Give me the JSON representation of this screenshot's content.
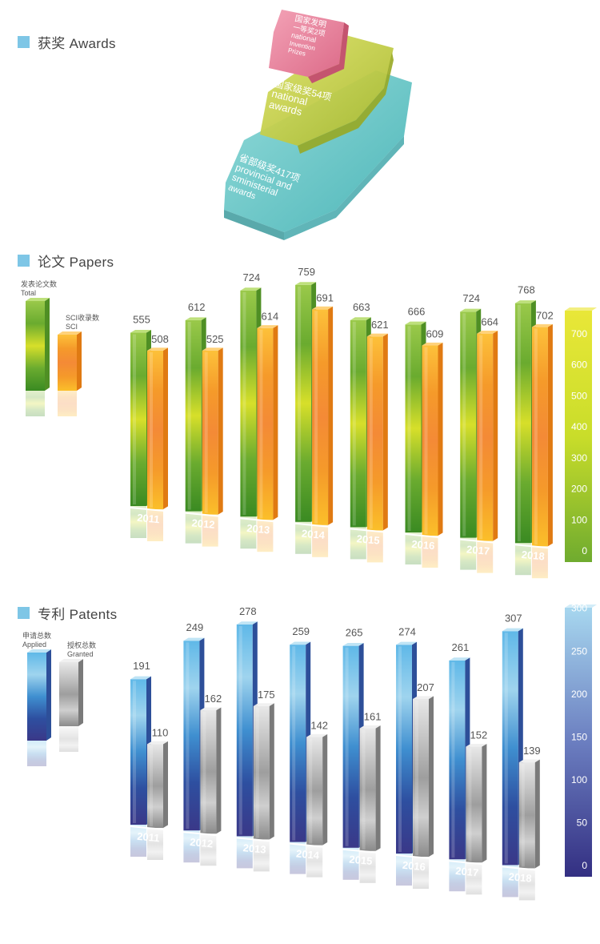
{
  "sections": {
    "awards": "获奖  Awards",
    "papers": "论文  Papers",
    "patents": "专利  Patents"
  },
  "awards": {
    "tiers": [
      {
        "lines": [
          "国家发明",
          "一等奖2项",
          "national",
          "Invention",
          "Prizes"
        ],
        "color": "#e87b95"
      },
      {
        "lines": [
          "国家级奖54项",
          "national",
          "awards"
        ],
        "color": "#c5cf3a"
      },
      {
        "lines": [
          "省部级奖417项",
          "provincial and",
          "sministerial",
          "awards"
        ],
        "color": "#5fc4c4"
      }
    ]
  },
  "chart_data": [
    {
      "type": "bar",
      "categories": [
        "2011",
        "2012",
        "2013",
        "2014",
        "2015",
        "2016",
        "2017",
        "2018"
      ],
      "series": [
        {
          "name": "发表论文数 Total",
          "values": [
            555,
            612,
            724,
            759,
            663,
            666,
            724,
            768
          ]
        },
        {
          "name": "SCI收录数 SCI",
          "values": [
            508,
            525,
            614,
            691,
            621,
            609,
            664,
            702
          ]
        }
      ],
      "legend": [
        {
          "cn": "发表论文数",
          "en": "Total"
        },
        {
          "cn": "SCI收录数",
          "en": "SCI"
        }
      ],
      "yticks": [
        "0",
        "100",
        "200",
        "300",
        "400",
        "500",
        "600",
        "700"
      ],
      "ylim": [
        0,
        800
      ],
      "colors": [
        "#7cb83a",
        "#f59a2a"
      ]
    },
    {
      "type": "bar",
      "categories": [
        "2011",
        "2012",
        "2013",
        "2014",
        "2015",
        "2016",
        "2017",
        "2018"
      ],
      "series": [
        {
          "name": "申请总数 Applied",
          "values": [
            191,
            249,
            278,
            259,
            265,
            274,
            261,
            307
          ]
        },
        {
          "name": "授权总数 Granted",
          "values": [
            110,
            162,
            175,
            142,
            161,
            207,
            152,
            139
          ]
        }
      ],
      "legend": [
        {
          "cn": "申请总数",
          "en": "Applied"
        },
        {
          "cn": "授权总数",
          "en": "Granted"
        }
      ],
      "yticks": [
        "0",
        "50",
        "100",
        "150",
        "200",
        "250",
        "300"
      ],
      "ylim": [
        0,
        310
      ],
      "colors": [
        "#5aa6dd",
        "#b5b5b5"
      ]
    }
  ]
}
